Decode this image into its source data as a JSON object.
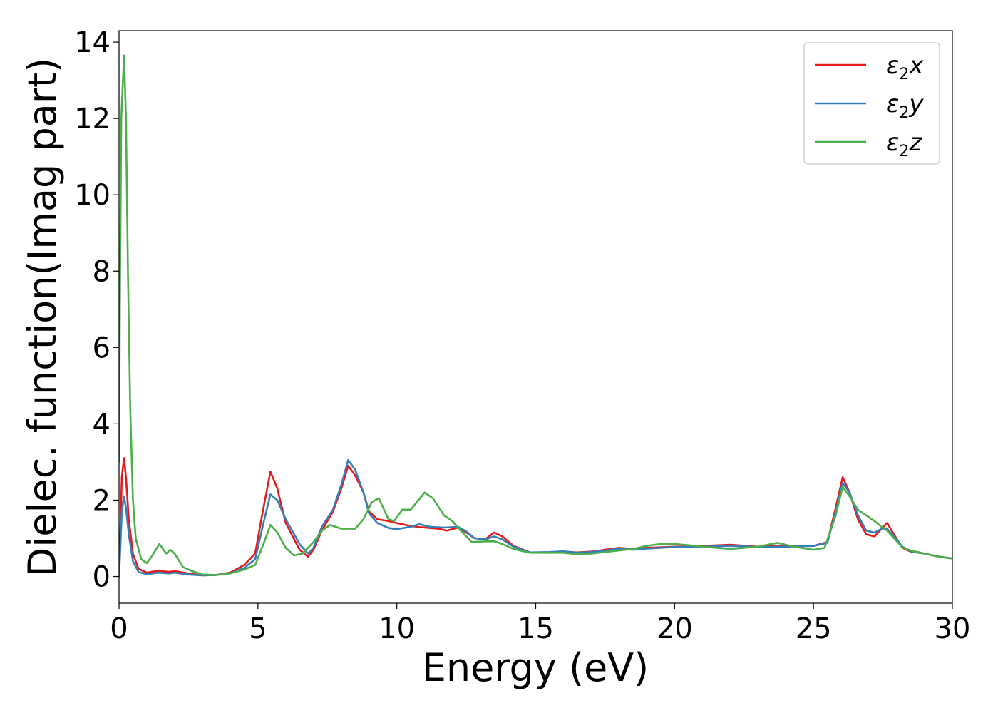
{
  "chart_data": {
    "type": "line",
    "title": "",
    "xlabel": "Energy (eV)",
    "ylabel": "Dielec. function(Imag part)",
    "xlim": [
      0,
      30
    ],
    "ylim": [
      -0.7,
      14.3
    ],
    "xticks": [
      0,
      5,
      10,
      15,
      20,
      25,
      30
    ],
    "yticks": [
      0,
      2,
      4,
      6,
      8,
      10,
      12,
      14
    ],
    "grid": false,
    "legend_position": "top-right",
    "series": [
      {
        "name": "x",
        "legend_symbol": "ε",
        "legend_subscript": "2",
        "color": "#e41a1c",
        "points": [
          [
            0,
            0
          ],
          [
            0.05,
            1.2
          ],
          [
            0.1,
            2.6
          ],
          [
            0.18,
            3.1
          ],
          [
            0.25,
            2.6
          ],
          [
            0.35,
            1.5
          ],
          [
            0.5,
            0.6
          ],
          [
            0.7,
            0.2
          ],
          [
            1.0,
            0.1
          ],
          [
            1.4,
            0.15
          ],
          [
            1.8,
            0.12
          ],
          [
            2.0,
            0.14
          ],
          [
            2.5,
            0.08
          ],
          [
            3.0,
            0.03
          ],
          [
            3.5,
            0.04
          ],
          [
            4.0,
            0.1
          ],
          [
            4.5,
            0.3
          ],
          [
            4.9,
            0.6
          ],
          [
            5.2,
            1.8
          ],
          [
            5.45,
            2.75
          ],
          [
            5.7,
            2.3
          ],
          [
            6.0,
            1.4
          ],
          [
            6.5,
            0.7
          ],
          [
            6.8,
            0.52
          ],
          [
            7.0,
            0.7
          ],
          [
            7.3,
            1.2
          ],
          [
            7.7,
            1.7
          ],
          [
            8.0,
            2.3
          ],
          [
            8.25,
            2.9
          ],
          [
            8.5,
            2.65
          ],
          [
            8.8,
            2.2
          ],
          [
            9.0,
            1.7
          ],
          [
            9.3,
            1.5
          ],
          [
            9.7,
            1.45
          ],
          [
            10.0,
            1.4
          ],
          [
            10.5,
            1.32
          ],
          [
            11.0,
            1.28
          ],
          [
            11.5,
            1.25
          ],
          [
            11.8,
            1.2
          ],
          [
            12.2,
            1.28
          ],
          [
            12.5,
            1.15
          ],
          [
            12.8,
            1.0
          ],
          [
            13.2,
            0.98
          ],
          [
            13.5,
            1.15
          ],
          [
            13.8,
            1.05
          ],
          [
            14.2,
            0.8
          ],
          [
            14.8,
            0.63
          ],
          [
            15.5,
            0.62
          ],
          [
            16.0,
            0.65
          ],
          [
            16.5,
            0.63
          ],
          [
            17.0,
            0.65
          ],
          [
            17.5,
            0.7
          ],
          [
            18.0,
            0.75
          ],
          [
            18.5,
            0.72
          ],
          [
            19.0,
            0.75
          ],
          [
            20.0,
            0.78
          ],
          [
            21.0,
            0.8
          ],
          [
            22.0,
            0.83
          ],
          [
            23.0,
            0.78
          ],
          [
            24.0,
            0.8
          ],
          [
            25.0,
            0.8
          ],
          [
            25.5,
            0.9
          ],
          [
            25.8,
            1.8
          ],
          [
            26.05,
            2.6
          ],
          [
            26.3,
            2.2
          ],
          [
            26.6,
            1.5
          ],
          [
            26.9,
            1.1
          ],
          [
            27.2,
            1.05
          ],
          [
            27.45,
            1.25
          ],
          [
            27.65,
            1.4
          ],
          [
            27.9,
            1.1
          ],
          [
            28.2,
            0.75
          ],
          [
            28.5,
            0.65
          ],
          [
            29.0,
            0.6
          ],
          [
            29.5,
            0.52
          ],
          [
            30.0,
            0.47
          ]
        ]
      },
      {
        "name": "y",
        "legend_symbol": "ε",
        "legend_subscript": "2",
        "color": "#377eb8",
        "points": [
          [
            0,
            0
          ],
          [
            0.05,
            0.8
          ],
          [
            0.1,
            1.7
          ],
          [
            0.18,
            2.1
          ],
          [
            0.25,
            1.8
          ],
          [
            0.35,
            1.1
          ],
          [
            0.5,
            0.4
          ],
          [
            0.7,
            0.12
          ],
          [
            1.0,
            0.06
          ],
          [
            1.4,
            0.1
          ],
          [
            1.8,
            0.08
          ],
          [
            2.0,
            0.1
          ],
          [
            2.5,
            0.05
          ],
          [
            3.0,
            0.03
          ],
          [
            3.5,
            0.04
          ],
          [
            4.0,
            0.08
          ],
          [
            4.5,
            0.22
          ],
          [
            4.9,
            0.45
          ],
          [
            5.2,
            1.4
          ],
          [
            5.45,
            2.15
          ],
          [
            5.7,
            2.0
          ],
          [
            6.0,
            1.5
          ],
          [
            6.5,
            0.85
          ],
          [
            6.8,
            0.6
          ],
          [
            7.0,
            0.75
          ],
          [
            7.3,
            1.3
          ],
          [
            7.7,
            1.75
          ],
          [
            8.0,
            2.4
          ],
          [
            8.25,
            3.05
          ],
          [
            8.5,
            2.8
          ],
          [
            8.8,
            2.2
          ],
          [
            9.0,
            1.65
          ],
          [
            9.3,
            1.4
          ],
          [
            9.7,
            1.27
          ],
          [
            10.0,
            1.24
          ],
          [
            10.5,
            1.3
          ],
          [
            10.8,
            1.37
          ],
          [
            11.2,
            1.3
          ],
          [
            11.7,
            1.28
          ],
          [
            12.2,
            1.3
          ],
          [
            12.5,
            1.18
          ],
          [
            12.8,
            1.0
          ],
          [
            13.2,
            0.97
          ],
          [
            13.5,
            1.05
          ],
          [
            13.8,
            0.97
          ],
          [
            14.2,
            0.78
          ],
          [
            14.8,
            0.63
          ],
          [
            15.5,
            0.64
          ],
          [
            16.0,
            0.66
          ],
          [
            16.5,
            0.62
          ],
          [
            17.0,
            0.64
          ],
          [
            17.5,
            0.68
          ],
          [
            18.0,
            0.73
          ],
          [
            18.5,
            0.7
          ],
          [
            19.0,
            0.73
          ],
          [
            20.0,
            0.77
          ],
          [
            21.0,
            0.78
          ],
          [
            22.0,
            0.8
          ],
          [
            23.0,
            0.77
          ],
          [
            24.0,
            0.78
          ],
          [
            25.0,
            0.8
          ],
          [
            25.5,
            0.88
          ],
          [
            25.8,
            1.7
          ],
          [
            26.05,
            2.45
          ],
          [
            26.3,
            2.2
          ],
          [
            26.6,
            1.6
          ],
          [
            26.9,
            1.2
          ],
          [
            27.2,
            1.15
          ],
          [
            27.45,
            1.25
          ],
          [
            27.65,
            1.25
          ],
          [
            27.9,
            1.05
          ],
          [
            28.2,
            0.78
          ],
          [
            28.5,
            0.66
          ],
          [
            29.0,
            0.6
          ],
          [
            29.5,
            0.52
          ],
          [
            30.0,
            0.47
          ]
        ]
      },
      {
        "name": "z",
        "legend_symbol": "ε",
        "legend_subscript": "2",
        "color": "#4daf4a",
        "points": [
          [
            0,
            3.0
          ],
          [
            0.03,
            7.0
          ],
          [
            0.08,
            12.0
          ],
          [
            0.18,
            13.65
          ],
          [
            0.25,
            12.0
          ],
          [
            0.32,
            8.0
          ],
          [
            0.4,
            4.5
          ],
          [
            0.5,
            2.0
          ],
          [
            0.6,
            1.0
          ],
          [
            0.8,
            0.45
          ],
          [
            1.0,
            0.35
          ],
          [
            1.2,
            0.55
          ],
          [
            1.45,
            0.85
          ],
          [
            1.6,
            0.7
          ],
          [
            1.7,
            0.6
          ],
          [
            1.85,
            0.7
          ],
          [
            2.0,
            0.6
          ],
          [
            2.3,
            0.25
          ],
          [
            2.6,
            0.15
          ],
          [
            3.0,
            0.05
          ],
          [
            3.5,
            0.04
          ],
          [
            4.0,
            0.08
          ],
          [
            4.5,
            0.18
          ],
          [
            4.9,
            0.3
          ],
          [
            5.2,
            0.85
          ],
          [
            5.45,
            1.35
          ],
          [
            5.7,
            1.15
          ],
          [
            6.0,
            0.75
          ],
          [
            6.3,
            0.55
          ],
          [
            6.6,
            0.6
          ],
          [
            7.0,
            0.9
          ],
          [
            7.3,
            1.2
          ],
          [
            7.6,
            1.35
          ],
          [
            8.0,
            1.25
          ],
          [
            8.5,
            1.25
          ],
          [
            8.8,
            1.5
          ],
          [
            9.1,
            1.95
          ],
          [
            9.35,
            2.05
          ],
          [
            9.7,
            1.5
          ],
          [
            9.9,
            1.45
          ],
          [
            10.2,
            1.75
          ],
          [
            10.5,
            1.75
          ],
          [
            11.0,
            2.2
          ],
          [
            11.3,
            2.05
          ],
          [
            11.7,
            1.6
          ],
          [
            12.0,
            1.45
          ],
          [
            12.3,
            1.2
          ],
          [
            12.7,
            0.9
          ],
          [
            13.2,
            0.92
          ],
          [
            13.5,
            0.92
          ],
          [
            13.8,
            0.85
          ],
          [
            14.2,
            0.72
          ],
          [
            14.8,
            0.62
          ],
          [
            15.5,
            0.62
          ],
          [
            16.0,
            0.62
          ],
          [
            16.5,
            0.58
          ],
          [
            17.0,
            0.6
          ],
          [
            17.5,
            0.64
          ],
          [
            18.0,
            0.68
          ],
          [
            18.5,
            0.72
          ],
          [
            19.0,
            0.8
          ],
          [
            19.5,
            0.85
          ],
          [
            20.0,
            0.85
          ],
          [
            20.5,
            0.82
          ],
          [
            21.0,
            0.78
          ],
          [
            22.0,
            0.72
          ],
          [
            23.0,
            0.78
          ],
          [
            23.7,
            0.88
          ],
          [
            24.3,
            0.78
          ],
          [
            25.0,
            0.7
          ],
          [
            25.4,
            0.75
          ],
          [
            25.8,
            1.6
          ],
          [
            26.05,
            2.35
          ],
          [
            26.3,
            2.1
          ],
          [
            26.6,
            1.75
          ],
          [
            26.9,
            1.6
          ],
          [
            27.2,
            1.45
          ],
          [
            27.45,
            1.3
          ],
          [
            27.65,
            1.2
          ],
          [
            27.9,
            1.0
          ],
          [
            28.2,
            0.76
          ],
          [
            28.5,
            0.68
          ],
          [
            29.0,
            0.6
          ],
          [
            29.5,
            0.52
          ],
          [
            30.0,
            0.47
          ]
        ]
      }
    ]
  }
}
